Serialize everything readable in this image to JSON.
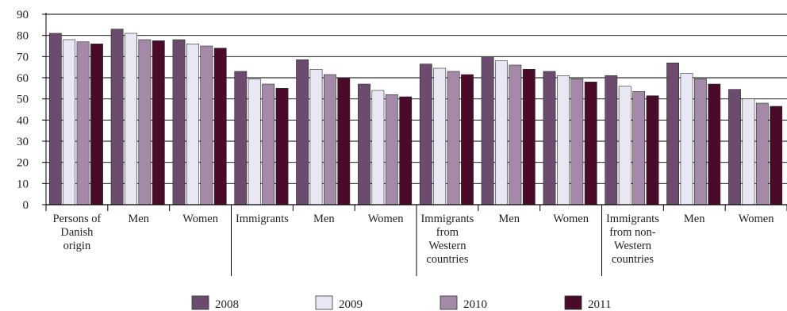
{
  "chart_data": {
    "type": "bar",
    "ylim": [
      0,
      90
    ],
    "yticks": [
      0,
      10,
      20,
      30,
      40,
      50,
      60,
      70,
      80,
      90
    ],
    "grid": true,
    "legend_position": "bottom",
    "categories": [
      [
        "Persons of",
        "Danish",
        "origin"
      ],
      [
        "Men"
      ],
      [
        "Women"
      ],
      [
        "Immigrants"
      ],
      [
        "Men"
      ],
      [
        "Women"
      ],
      [
        "Immigrants",
        "from",
        "Western",
        "countries"
      ],
      [
        "Men"
      ],
      [
        "Women"
      ],
      [
        "Immigrants",
        "from non-",
        "Western",
        "countries"
      ],
      [
        "Men"
      ],
      [
        "Women"
      ]
    ],
    "series": [
      {
        "name": "2008",
        "color": "#6b4c6e",
        "values": [
          81,
          83,
          78,
          63,
          68.5,
          57,
          66.5,
          70,
          63,
          61,
          67,
          54.5
        ]
      },
      {
        "name": "2009",
        "color": "#e9e7f3",
        "values": [
          78,
          81,
          76,
          59.5,
          64,
          54,
          64.5,
          68,
          61,
          56,
          62,
          50
        ]
      },
      {
        "name": "2010",
        "color": "#a48aa8",
        "values": [
          77,
          78,
          75,
          57,
          61.5,
          52,
          63,
          66,
          59.5,
          53.5,
          59.5,
          48
        ]
      },
      {
        "name": "2011",
        "color": "#4a0a2a",
        "values": [
          76,
          77.5,
          74,
          55,
          60,
          51,
          61.5,
          64,
          58,
          51.5,
          57,
          46.5
        ]
      }
    ]
  }
}
